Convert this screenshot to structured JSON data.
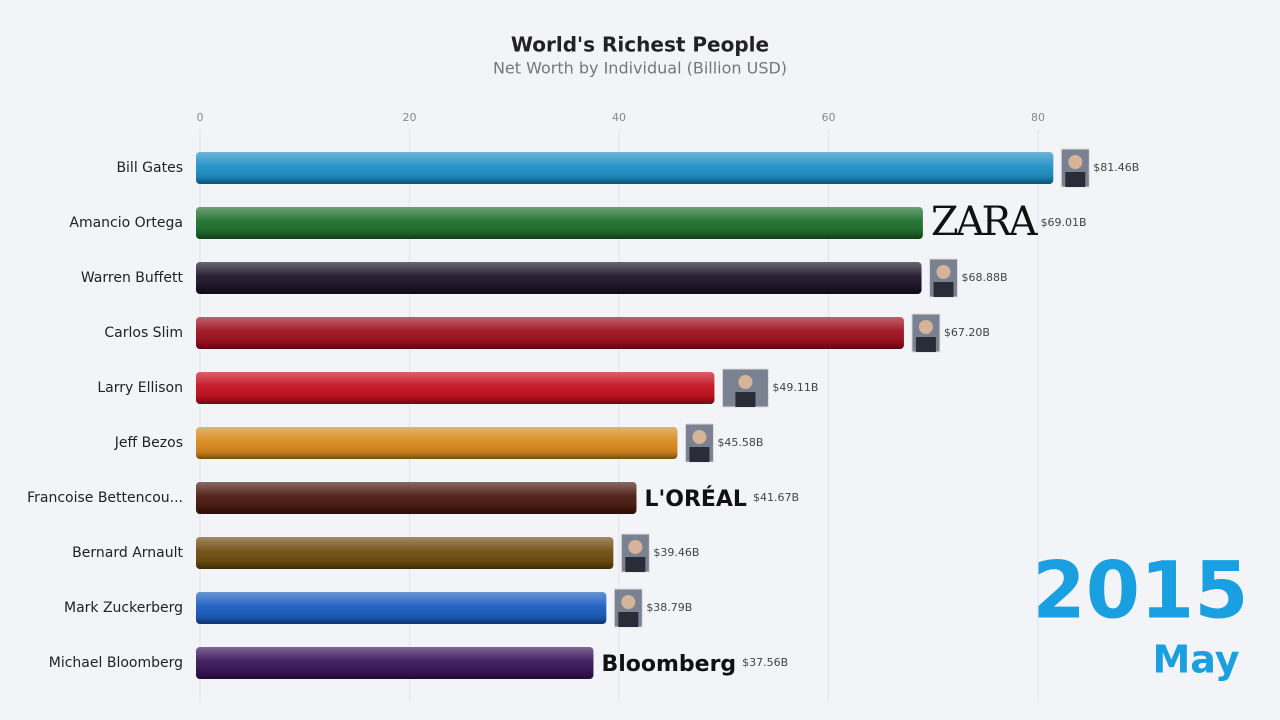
{
  "chart_data": {
    "type": "bar",
    "orientation": "horizontal",
    "title": "World's Richest People",
    "subtitle": "Net Worth by Individual (Billion USD)",
    "categories": [
      "Bill Gates",
      "Amancio Ortega",
      "Warren Buffett",
      "Carlos Slim",
      "Larry Ellison",
      "Jeff Bezos",
      "Francoise Bettencou...",
      "Bernard Arnault",
      "Mark Zuckerberg",
      "Michael Bloomberg"
    ],
    "values": [
      81.46,
      69.01,
      68.88,
      67.2,
      49.11,
      45.58,
      41.67,
      39.46,
      38.79,
      37.56
    ],
    "value_labels": [
      "$81.46B",
      "$69.01B",
      "$68.88B",
      "$67.20B",
      "$49.11B",
      "$45.58B",
      "$41.67B",
      "$39.46B",
      "$38.79B",
      "$37.56B"
    ],
    "colors": [
      "#1e8fc4",
      "#1d6e2c",
      "#1c1428",
      "#9e0f1e",
      "#c50f1f",
      "#d8891d",
      "#4a1a10",
      "#6e4c0d",
      "#1a5cc0",
      "#3a1558"
    ],
    "logos": [
      null,
      "ZARA",
      null,
      null,
      null,
      null,
      "L'ORÉAL",
      null,
      null,
      "Bloomberg"
    ],
    "xlim": [
      0,
      100
    ],
    "xticks": [
      0,
      20,
      40,
      60,
      80
    ],
    "grid": true,
    "year_label": "2015",
    "month_label": "May"
  }
}
